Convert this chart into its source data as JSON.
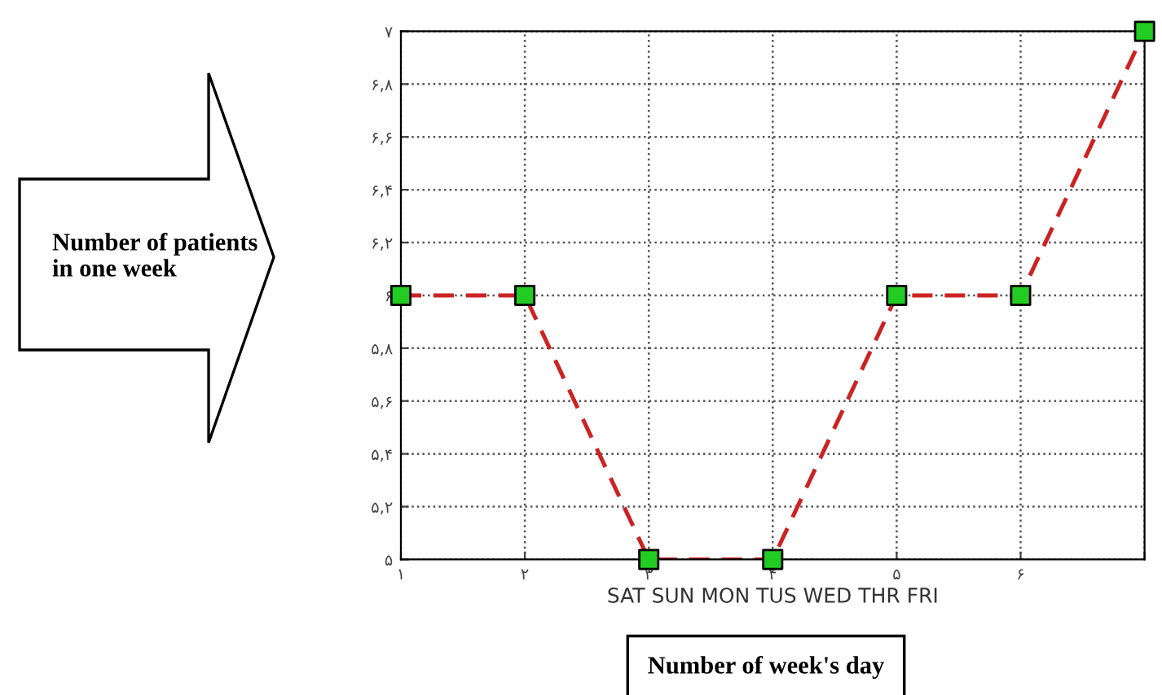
{
  "chart_data": {
    "type": "line",
    "xlabel": "SAT SUN MON TUS WED THR FRI",
    "ylabel": "Number of patients in one week",
    "annotations": [
      "Number of week's day"
    ],
    "x": [
      1,
      2,
      3,
      4,
      5,
      6,
      7
    ],
    "series": [
      {
        "color": "#cc2222",
        "colors": [
          "#22cc22",
          "#22cc22",
          "#22cc22",
          "#22cc22",
          "#22cc22",
          "#22cc22",
          "#22cc22"
        ],
        "values": [
          6,
          6,
          5,
          5,
          6,
          6,
          7
        ]
      }
    ],
    "xlim": [
      1,
      7
    ],
    "ylim": [
      5,
      7
    ],
    "xticks": [
      {
        "value": 1,
        "label": "۱"
      },
      {
        "value": 2,
        "label": "۲"
      },
      {
        "value": 3,
        "label": "۳"
      },
      {
        "value": 4,
        "label": "۴"
      },
      {
        "value": 5,
        "label": "۵"
      },
      {
        "value": 6,
        "label": "۶"
      },
      {
        "value": 7,
        "label": null
      }
    ],
    "yticks": [
      {
        "value": 5,
        "label": "۵"
      },
      {
        "value": 5.2,
        "label": "۵,۲"
      },
      {
        "value": 5.4,
        "label": "۵,۴"
      },
      {
        "value": 5.6,
        "label": "۵,۶"
      },
      {
        "value": 5.8,
        "label": "۵,۸"
      },
      {
        "value": 6,
        "label": "۶"
      },
      {
        "value": 6.2,
        "label": "۶,۲"
      },
      {
        "value": 6.4,
        "label": "۶,۴"
      },
      {
        "value": 6.6,
        "label": "۶,۶"
      },
      {
        "value": 6.8,
        "label": "۶,۸"
      },
      {
        "value": 7,
        "label": "۷"
      }
    ],
    "grid": true,
    "marker": "square",
    "line_style": "dashed"
  }
}
